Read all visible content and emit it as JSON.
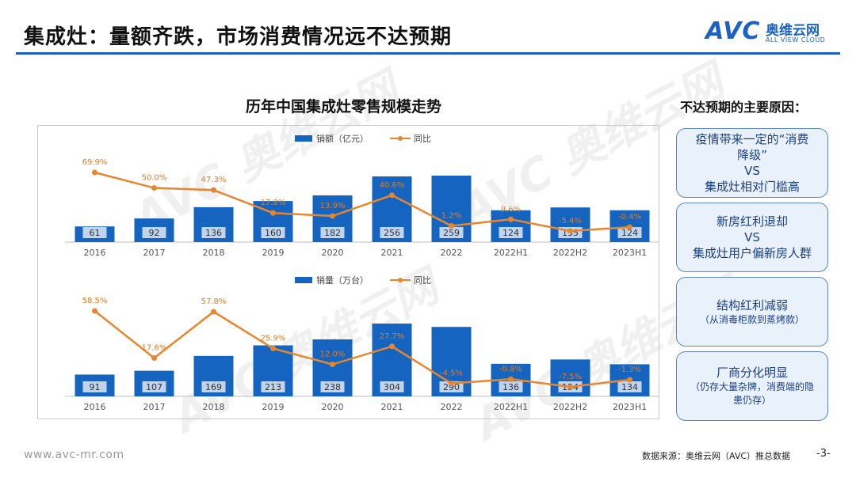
{
  "header": {
    "title": "集成灶：量额齐跌，市场消费情况远不达预期",
    "logo_text": "AVC",
    "logo_cn": "奥维云网",
    "logo_en": "ALL VIEW CLOUD"
  },
  "chart_title": "历年中国集成灶零售规模走势",
  "chart_data": [
    {
      "type": "bar",
      "categories": [
        "2016",
        "2017",
        "2018",
        "2019",
        "2020",
        "2021",
        "2022",
        "2022H1",
        "2022H2",
        "2023H1"
      ],
      "series": [
        {
          "name": "销额（亿元）",
          "type": "bar",
          "values": [
            61,
            92,
            136,
            160,
            182,
            256,
            259,
            124,
            135,
            124
          ]
        },
        {
          "name": "同比",
          "type": "line",
          "values": [
            69.9,
            50.0,
            47.3,
            17.8,
            13.9,
            40.6,
            1.2,
            9.6,
            -5.4,
            -0.4
          ],
          "labels": [
            "69.9%",
            "50.0%",
            "47.3%",
            "17.8%",
            "13.9%",
            "40.6%",
            "1.2%",
            "9.6%",
            "-5.4%",
            "-0.4%"
          ]
        }
      ],
      "legend": "top-center",
      "bar_color": "#1565c0",
      "line_color": "#e8862e"
    },
    {
      "type": "bar",
      "categories": [
        "2016",
        "2017",
        "2018",
        "2019",
        "2020",
        "2021",
        "2022",
        "2022H1",
        "2022H2",
        "2023H1"
      ],
      "series": [
        {
          "name": "销量（万台）",
          "type": "bar",
          "values": [
            91,
            107,
            169,
            213,
            238,
            304,
            290,
            136,
            154,
            134
          ]
        },
        {
          "name": "同比",
          "type": "line",
          "values": [
            58.5,
            17.6,
            57.8,
            25.9,
            12.0,
            27.7,
            -4.5,
            -0.8,
            -7.5,
            -1.3
          ],
          "labels": [
            "58.5%",
            "17.6%",
            "57.8%",
            "25.9%",
            "12.0%",
            "27.7%",
            "-4.5%",
            "-0.8%",
            "-7.5%",
            "-1.3%"
          ]
        }
      ],
      "legend": "top-center",
      "bar_color": "#1565c0",
      "line_color": "#e8862e"
    }
  ],
  "reasons": {
    "title": "不达预期的主要原因：",
    "boxes": [
      {
        "lines": [
          "疫情带来一定的“消费",
          "降级”",
          "VS",
          "集成灶相对门槛高"
        ],
        "sub": ""
      },
      {
        "lines": [
          "新房红利退却",
          "VS",
          "集成灶用户偏新房人群"
        ],
        "sub": ""
      },
      {
        "lines": [
          "结构红利减弱"
        ],
        "sub": "（从消毒柜款到蒸烤款）"
      },
      {
        "lines": [
          "厂商分化明显"
        ],
        "sub": "（仍存大量杂牌，消费端的隐患仍存）"
      }
    ]
  },
  "footer": {
    "url": "www.avc-mr.com",
    "source": "数据来源：奥维云网（AVC）推总数据",
    "page": "-3-"
  }
}
